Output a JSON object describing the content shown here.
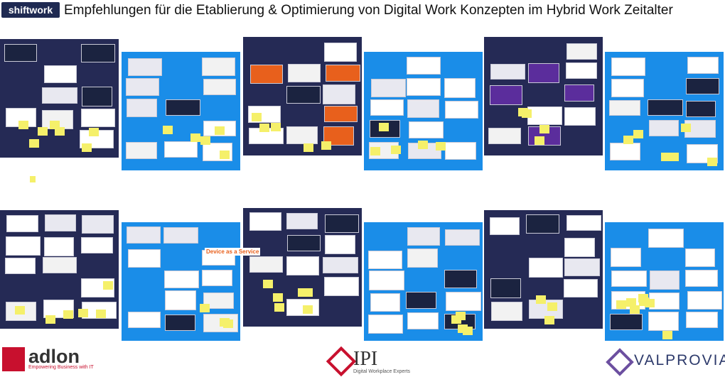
{
  "header": {
    "logo": "shiftwork",
    "title": "Empfehlungen für die Etablierung & Optimierung von Digital Work Konzepten im Hybrid Work Zeitalter"
  },
  "boards": {
    "device_label": "Device as a Service"
  },
  "footer": {
    "logos": [
      {
        "name": "adlon",
        "tagline": "Empowering Business with IT"
      },
      {
        "name": "IPI",
        "tagline": "Digital Workplace Experts"
      },
      {
        "name": "VALPROVIA"
      }
    ]
  }
}
